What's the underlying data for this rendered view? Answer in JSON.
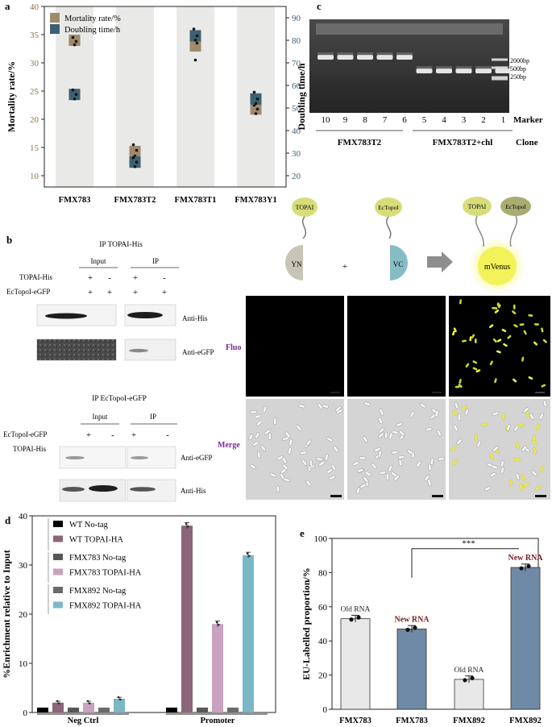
{
  "panel_labels": {
    "a": "a",
    "b": "b",
    "c": "c",
    "d": "d",
    "e": "e"
  },
  "panel_a": {
    "chart_data": {
      "type": "scatter",
      "categories": [
        "FMX783",
        "FMX783T2",
        "FMX783T1",
        "FMX783Y1"
      ],
      "ylabel_left": "Mortality rate/%",
      "ylabel_right": "Doubling time/h",
      "ylim_left": [
        8,
        40
      ],
      "ylim_right": [
        15,
        95
      ],
      "yticks_left": [
        "10",
        "15",
        "20",
        "25",
        "30",
        "35",
        "40"
      ],
      "yticks_right": [
        "20",
        "30",
        "40",
        "50",
        "60",
        "70",
        "80",
        "90"
      ],
      "legend_position": "top-left",
      "series": [
        {
          "name": "Mortality rate/%",
          "axis": "left",
          "color": "#a08a6a",
          "values": [
            34,
            14.3,
            33,
            21.8
          ],
          "points": [
            [
              34.5,
              33.2,
              33.8
            ],
            [
              15.5,
              13.5,
              14.5
            ],
            [
              35,
              30.5,
              33.5
            ],
            [
              22.5,
              21,
              21.8
            ]
          ]
        },
        {
          "name": "Doubling time/h",
          "axis": "right",
          "color": "#3d6173",
          "values": [
            56,
            26,
            82,
            54
          ],
          "points": [
            [
              58,
              54,
              56
            ],
            [
              28,
              24,
              26
            ],
            [
              85,
              80,
              82
            ],
            [
              57,
              52,
              54
            ]
          ]
        }
      ]
    }
  },
  "panel_b": {
    "ip1_title": "IP TOPAI-His",
    "ip2_title": "IP EcTopoI-eGFP",
    "col_input": "Input",
    "col_ip": "IP",
    "row1": {
      "label": "TOPAI-His",
      "marks": [
        "+",
        "-",
        "+",
        "-"
      ]
    },
    "row2": {
      "label": "EcTopoI-eGFP",
      "marks": [
        "+",
        "+",
        "+",
        "+"
      ]
    },
    "row3": {
      "label": "EcTopoI-eGFP",
      "marks": [
        "+",
        "-",
        "+",
        "-"
      ]
    },
    "row4": {
      "label": "TOPAI-His",
      "marks": [
        "+",
        "+",
        "+",
        "+"
      ]
    },
    "blot_labels": [
      "Anti-His",
      "Anti-eGFP",
      "Anti-eGFP",
      "Anti-His"
    ],
    "bifc": {
      "topai": "TOPAI",
      "ectopoi": "EcTopoI",
      "yn": "YN",
      "vc": "VC",
      "plus": "+",
      "mvenus": "mVenus"
    },
    "row_fluo": "Fluo",
    "row_merge": "Merge"
  },
  "panel_c": {
    "marker_sizes": [
      "2000bp",
      "500bp",
      "250bp"
    ],
    "lane_labels": [
      "10",
      "9",
      "8",
      "7",
      "6",
      "5",
      "4",
      "3",
      "2",
      "1",
      "Marker"
    ],
    "group1": "FMX783T2",
    "group2": "FMX783T2+chl",
    "clone": "Clone"
  },
  "panel_d": {
    "chart_data": {
      "type": "bar",
      "categories": [
        "Neg Ctrl",
        "Promoter"
      ],
      "ylabel": "%Enrichment relative to Input",
      "ylim": [
        0,
        40
      ],
      "yticks": [
        "0",
        "10",
        "20",
        "30",
        "40"
      ],
      "legend_position": "top-left",
      "series": [
        {
          "name": "WT No-tag",
          "color": "#000000",
          "values": [
            1.0,
            1.0
          ]
        },
        {
          "name": "WT TOPAI-HA",
          "color": "#8b6578",
          "values": [
            2.0,
            38.0
          ]
        },
        {
          "name": "FMX783 No-tag",
          "color": "#575757",
          "values": [
            1.0,
            1.0
          ]
        },
        {
          "name": "FMX783 TOPAI-HA",
          "color": "#c8a2bf",
          "values": [
            2.0,
            18.0
          ]
        },
        {
          "name": "FMX892 No-tag",
          "color": "#6a6a6a",
          "values": [
            1.0,
            1.0
          ]
        },
        {
          "name": "FMX892 TOPAI-HA",
          "color": "#7ab8c6",
          "values": [
            2.8,
            32.0
          ]
        }
      ]
    }
  },
  "panel_e": {
    "chart_data": {
      "type": "bar",
      "categories": [
        "FMX783",
        "FMX783",
        "FMX892",
        "FMX892"
      ],
      "values": [
        53,
        47,
        17.5,
        83
      ],
      "bar_labels": [
        "Old RNA",
        "New RNA",
        "Old RNA",
        "New RNA"
      ],
      "colors": [
        "#e8e8e8",
        "#6f8aa6",
        "#e8e8e8",
        "#6f8aa6"
      ],
      "ylabel": "EU-Labelled proportion/%",
      "ylim": [
        0,
        100
      ],
      "yticks": [
        "0",
        "20",
        "40",
        "60",
        "80",
        "100"
      ],
      "significance": "***"
    }
  }
}
